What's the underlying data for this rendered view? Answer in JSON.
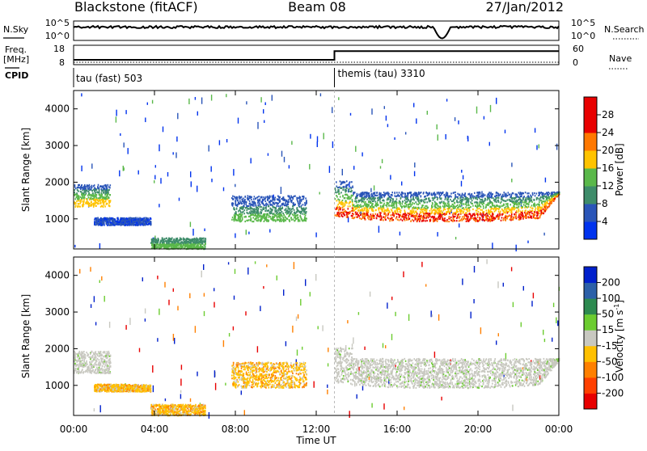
{
  "header": {
    "station": "Blackstone (fitACF)",
    "beam": "Beam 08",
    "date": "27/Jan/2012"
  },
  "top_panels": {
    "nsky_label": "N.Sky",
    "nsearch_label": "N.Search",
    "nsky_ticks": [
      "10^5",
      "10^0"
    ],
    "nsearch_ticks": [
      "10^5",
      "10^0"
    ],
    "freq_label_line1": "Freq.",
    "freq_label_line2": "[MHz]",
    "freq_ticks": [
      "18",
      "8"
    ],
    "nave_label": "Nave",
    "nave_ticks": [
      "60",
      "0"
    ],
    "cpid_label": "CPID",
    "cpid_1": "tau (fast) 503",
    "cpid_2": "themis (tau) 3310"
  },
  "power_panel": {
    "ylabel": "Slant Range [km]",
    "colorbar_label": "Power [dB]",
    "colorbar_ticks": [
      "28",
      "24",
      "20",
      "16",
      "12",
      "8",
      "4"
    ],
    "colors": [
      "#0033ee",
      "#2a55b8",
      "#3e8c6a",
      "#5ab84a",
      "#ffc300",
      "#ff7800",
      "#e80000"
    ]
  },
  "velocity_panel": {
    "ylabel": "Slant Range [km]",
    "colorbar_label": "Velocity [m s",
    "colorbar_label_sup": "-1",
    "colorbar_label_end": "]",
    "colorbar_ticks": [
      "200",
      "100",
      "50",
      "15",
      "-15",
      "-50",
      "-100",
      "-200"
    ],
    "colors": [
      "#0020cc",
      "#2c60a8",
      "#2d8a50",
      "#6ccc30",
      "#c8c8c0",
      "#ffc000",
      "#ff8000",
      "#ff4000",
      "#e80000"
    ]
  },
  "x_axis": {
    "label": "Time UT",
    "ticks": [
      "00:00",
      "04:00",
      "08:00",
      "12:00",
      "16:00",
      "20:00",
      "00:00"
    ]
  },
  "chart_data": [
    {
      "type": "line",
      "name": "N.Sky / N.Search",
      "x_range_hours": [
        0,
        24
      ],
      "yscale": "log",
      "ylim": [
        "10^0",
        "10^5"
      ],
      "note_dip": {
        "x_hours": [
          17.8,
          18.9
        ],
        "series": "N.Sky"
      }
    },
    {
      "type": "line",
      "name": "Freq / Nave",
      "x": [
        0,
        12.9,
        12.9,
        24
      ],
      "freq_mhz": [
        10.5,
        10.5,
        15,
        15
      ],
      "freq_ylim": [
        8,
        18
      ],
      "nave_ylim": [
        0,
        60
      ]
    },
    {
      "type": "heatmap",
      "panel": "power",
      "x_range_hours": [
        0,
        24
      ],
      "ylim_km": [
        180,
        4500
      ],
      "yticks": [
        1000,
        2000,
        3000,
        4000
      ],
      "zlim_db": [
        0,
        32
      ],
      "regions": [
        {
          "x": [
            0,
            1.8
          ],
          "y": [
            1350,
            1950
          ],
          "level": "green-yellow"
        },
        {
          "x": [
            1.0,
            3.8
          ],
          "y": [
            850,
            1050
          ],
          "level": "blue"
        },
        {
          "x": [
            3.8,
            6.5
          ],
          "y": [
            200,
            500
          ],
          "level": "green"
        },
        {
          "x": [
            7.8,
            11.5
          ],
          "y": [
            950,
            1650
          ],
          "level": "blue-green"
        },
        {
          "x": [
            12.9,
            24
          ],
          "y": [
            950,
            1900
          ],
          "level": "red-orange"
        }
      ]
    },
    {
      "type": "heatmap",
      "panel": "velocity",
      "x_range_hours": [
        0,
        24
      ],
      "ylim_km": [
        180,
        4500
      ],
      "yticks": [
        1000,
        2000,
        3000,
        4000
      ],
      "zlim_ms": [
        -200,
        200
      ],
      "regions": [
        {
          "x": [
            0,
            1.8
          ],
          "y": [
            1350,
            1950
          ],
          "level": "grey"
        },
        {
          "x": [
            1.0,
            3.8
          ],
          "y": [
            850,
            1050
          ],
          "level": "orange"
        },
        {
          "x": [
            3.8,
            6.5
          ],
          "y": [
            200,
            500
          ],
          "level": "orange"
        },
        {
          "x": [
            7.8,
            11.5
          ],
          "y": [
            950,
            1650
          ],
          "level": "orange"
        },
        {
          "x": [
            12.9,
            24
          ],
          "y": [
            950,
            1900
          ],
          "level": "grey"
        }
      ]
    }
  ]
}
